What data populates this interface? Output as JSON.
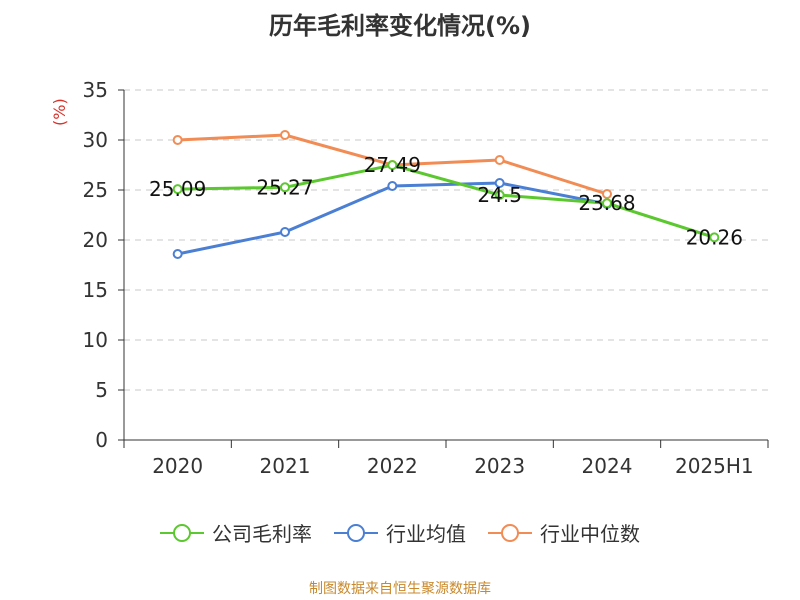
{
  "source": "制图数据来自恒生聚源数据库",
  "chart_data": {
    "type": "line",
    "title": "历年毛利率变化情况(%)",
    "unit_label": "(%)",
    "categories": [
      "2020",
      "2021",
      "2022",
      "2023",
      "2024",
      "2025H1"
    ],
    "ylim": [
      0,
      35
    ],
    "yticks": [
      0,
      5,
      10,
      15,
      20,
      25,
      30,
      35
    ],
    "grid": true,
    "legend_position": "bottom",
    "series": [
      {
        "name": "公司毛利率",
        "color": "#5cc82f",
        "values": [
          25.09,
          25.27,
          27.49,
          24.5,
          23.68,
          20.26
        ],
        "labels": [
          "25.09",
          "25.27",
          "27.49",
          "24.5",
          "23.68",
          "20.26"
        ]
      },
      {
        "name": "行业均值",
        "color": "#4a7fd4",
        "values": [
          18.6,
          20.8,
          25.4,
          25.7,
          23.6,
          null
        ]
      },
      {
        "name": "行业中位数",
        "color": "#f28c55",
        "values": [
          30.0,
          30.5,
          27.5,
          28.0,
          24.6,
          null
        ]
      }
    ]
  }
}
